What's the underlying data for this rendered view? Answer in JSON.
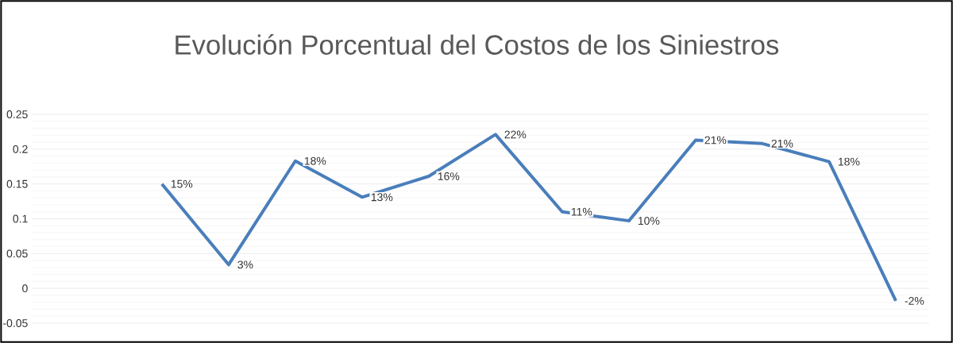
{
  "chart_data": {
    "type": "line",
    "title": "Evolución Porcentual del Costos de los Siniestros",
    "categories": [
      null,
      null,
      null,
      null,
      null,
      null,
      null,
      null,
      null,
      null,
      null,
      null
    ],
    "series": [
      {
        "color": "#4a7ebb",
        "values": [
          0.15,
          0.034,
          0.183,
          0.131,
          0.161,
          0.221,
          0.11,
          0.097,
          0.213,
          0.208,
          0.182,
          -0.018
        ],
        "value_labels": [
          "15%",
          "3%",
          "18%",
          "13%",
          "16%",
          "22%",
          "11%",
          "10%",
          "21%",
          "21%",
          "18%",
          "-2%"
        ]
      }
    ],
    "ylim": [
      -0.05,
      0.25
    ],
    "yticks": [
      -0.05,
      0,
      0.05,
      0.1,
      0.15,
      0.2,
      0.25
    ],
    "grid": "y",
    "marker": "none",
    "line_style": "solid"
  }
}
